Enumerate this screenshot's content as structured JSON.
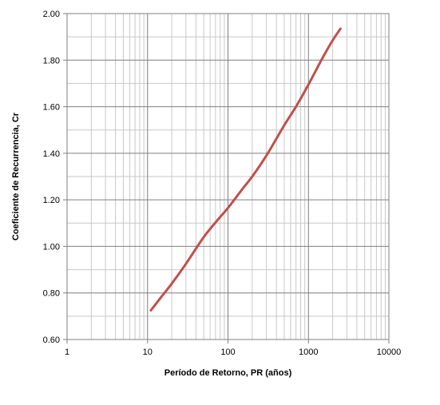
{
  "chart_data": {
    "type": "line",
    "title": "",
    "xlabel": "Período de Retorno, PR (años)",
    "ylabel": "Coeficiente de Recurrencia, Cr",
    "x_scale": "log",
    "xlim": [
      1,
      10000
    ],
    "ylim": [
      0.6,
      2.0
    ],
    "x_ticks": [
      "1",
      "10",
      "100",
      "1000",
      "10000"
    ],
    "y_ticks": [
      "0.60",
      "0.80",
      "1.00",
      "1.20",
      "1.40",
      "1.60",
      "1.80",
      "2.00"
    ],
    "grid": true,
    "legend": "none",
    "series": [
      {
        "color": "#c0504d",
        "x": [
          11,
          15,
          20,
          30,
          50,
          75,
          100,
          150,
          200,
          300,
          500,
          700,
          1000,
          1500,
          2000,
          2500
        ],
        "y": [
          0.725,
          0.785,
          0.84,
          0.925,
          1.04,
          1.115,
          1.165,
          1.245,
          1.3,
          1.39,
          1.52,
          1.6,
          1.695,
          1.81,
          1.885,
          1.935
        ]
      }
    ]
  },
  "colors": {
    "grid_major": "#7f7f7f",
    "grid_minor": "#c8c8c8",
    "axis": "#7f7f7f"
  }
}
